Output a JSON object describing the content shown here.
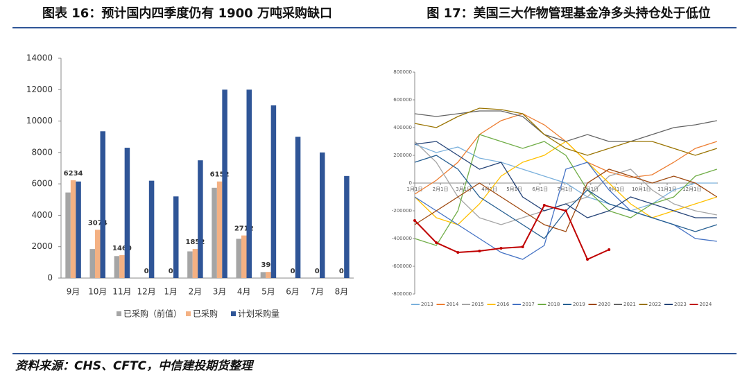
{
  "chart_data": [
    {
      "type": "bar",
      "title": "图表 16：预计国内四季度仍有 1900 万吨采购缺口",
      "categories": [
        "9月",
        "10月",
        "11月",
        "12月",
        "1月",
        "2月",
        "3月",
        "4月",
        "5月",
        "6月",
        "7月",
        "8月"
      ],
      "series": [
        {
          "name": "已采购（前值）",
          "color": "#a5a5a5",
          "values": [
            5450,
            1850,
            1400,
            null,
            null,
            1700,
            5750,
            2500,
            380,
            null,
            null,
            null
          ]
        },
        {
          "name": "已采购",
          "color": "#f4b183",
          "values": [
            6234,
            3074,
            1460,
            0,
            0,
            1852,
            6152,
            2712,
            390,
            0,
            0,
            0
          ]
        },
        {
          "name": "计划采购量",
          "color": "#2f5597",
          "values": [
            6150,
            9350,
            8300,
            6200,
            5200,
            7500,
            12000,
            12000,
            11000,
            9000,
            8000,
            6500
          ]
        }
      ],
      "ylim": [
        0,
        14000
      ],
      "yticks": [
        0,
        2000,
        4000,
        6000,
        8000,
        10000,
        12000,
        14000
      ]
    },
    {
      "type": "line",
      "title": "图 17：美国三大作物管理基金净多头持仓处于低位",
      "x": [
        0,
        26,
        52,
        78,
        104,
        130,
        156,
        182,
        208,
        234,
        260,
        286,
        312,
        338,
        364
      ],
      "xlim": [
        0,
        365
      ],
      "xticks": [
        {
          "value": 0,
          "label": "1月1日"
        },
        {
          "value": 31,
          "label": "2月1日"
        },
        {
          "value": 59,
          "label": "3月1日"
        },
        {
          "value": 90,
          "label": "4月1日"
        },
        {
          "value": 120,
          "label": "5月1日"
        },
        {
          "value": 151,
          "label": "6月1日"
        },
        {
          "value": 181,
          "label": "7月1日"
        },
        {
          "value": 212,
          "label": "8月1日"
        },
        {
          "value": 243,
          "label": "9月1日"
        },
        {
          "value": 273,
          "label": "10月1日"
        },
        {
          "value": 304,
          "label": "11月1日"
        },
        {
          "value": 334,
          "label": "12月1日"
        }
      ],
      "ylim": [
        -800000,
        800000
      ],
      "yticks": [
        -800000,
        -600000,
        -400000,
        -200000,
        0,
        200000,
        400000,
        600000,
        800000
      ],
      "series": [
        {
          "name": "2013",
          "color": "#7ab0dc",
          "values": [
            280000,
            220000,
            260000,
            180000,
            150000,
            100000,
            50000,
            0,
            -100000,
            -150000,
            -200000,
            -150000,
            -50000,
            0,
            0
          ]
        },
        {
          "name": "2014",
          "color": "#ed7d31",
          "values": [
            -80000,
            20000,
            150000,
            350000,
            450000,
            500000,
            420000,
            300000,
            150000,
            80000,
            40000,
            60000,
            150000,
            250000,
            300000
          ]
        },
        {
          "name": "2015",
          "color": "#a5a5a5",
          "values": [
            300000,
            150000,
            -100000,
            -250000,
            -300000,
            -250000,
            -200000,
            -150000,
            -100000,
            50000,
            100000,
            -50000,
            -150000,
            -200000,
            -230000
          ]
        },
        {
          "name": "2016",
          "color": "#ffc000",
          "values": [
            -100000,
            -250000,
            -300000,
            -150000,
            50000,
            150000,
            200000,
            300000,
            150000,
            0,
            -150000,
            -250000,
            -200000,
            -150000,
            -100000
          ]
        },
        {
          "name": "2017",
          "color": "#4472c4",
          "values": [
            -100000,
            -200000,
            -300000,
            -400000,
            -500000,
            -550000,
            -450000,
            100000,
            150000,
            -50000,
            -200000,
            -250000,
            -300000,
            -400000,
            -420000
          ]
        },
        {
          "name": "2018",
          "color": "#70ad47",
          "values": [
            -400000,
            -450000,
            -200000,
            350000,
            300000,
            250000,
            300000,
            200000,
            -50000,
            -200000,
            -250000,
            -150000,
            -100000,
            50000,
            100000
          ]
        },
        {
          "name": "2019",
          "color": "#255e91",
          "values": [
            150000,
            200000,
            100000,
            -100000,
            -200000,
            -300000,
            -400000,
            -200000,
            -50000,
            -150000,
            -200000,
            -250000,
            -300000,
            -350000,
            -300000
          ]
        },
        {
          "name": "2020",
          "color": "#9e480e",
          "values": [
            -300000,
            -200000,
            -100000,
            0,
            -100000,
            -200000,
            -300000,
            -350000,
            0,
            100000,
            50000,
            0,
            50000,
            0,
            -100000
          ]
        },
        {
          "name": "2021",
          "color": "#636363",
          "values": [
            500000,
            480000,
            500000,
            520000,
            520000,
            480000,
            350000,
            300000,
            350000,
            300000,
            300000,
            350000,
            400000,
            420000,
            450000
          ]
        },
        {
          "name": "2022",
          "color": "#997300",
          "values": [
            430000,
            400000,
            480000,
            540000,
            530000,
            500000,
            350000,
            250000,
            200000,
            250000,
            300000,
            300000,
            250000,
            200000,
            250000
          ]
        },
        {
          "name": "2023",
          "color": "#264478",
          "values": [
            280000,
            300000,
            200000,
            100000,
            150000,
            -100000,
            -200000,
            -150000,
            -250000,
            -200000,
            -100000,
            -150000,
            -200000,
            -250000,
            -250000
          ]
        },
        {
          "name": "2024",
          "color": "#c00000",
          "values": [
            -270000,
            -430000,
            -500000,
            -490000,
            -470000,
            -460000,
            -160000,
            -200000,
            -550000,
            -480000,
            null,
            null,
            null,
            null,
            null
          ]
        }
      ]
    }
  ],
  "source": "资料来源：CHS、CFTC，中信建投期货整理"
}
